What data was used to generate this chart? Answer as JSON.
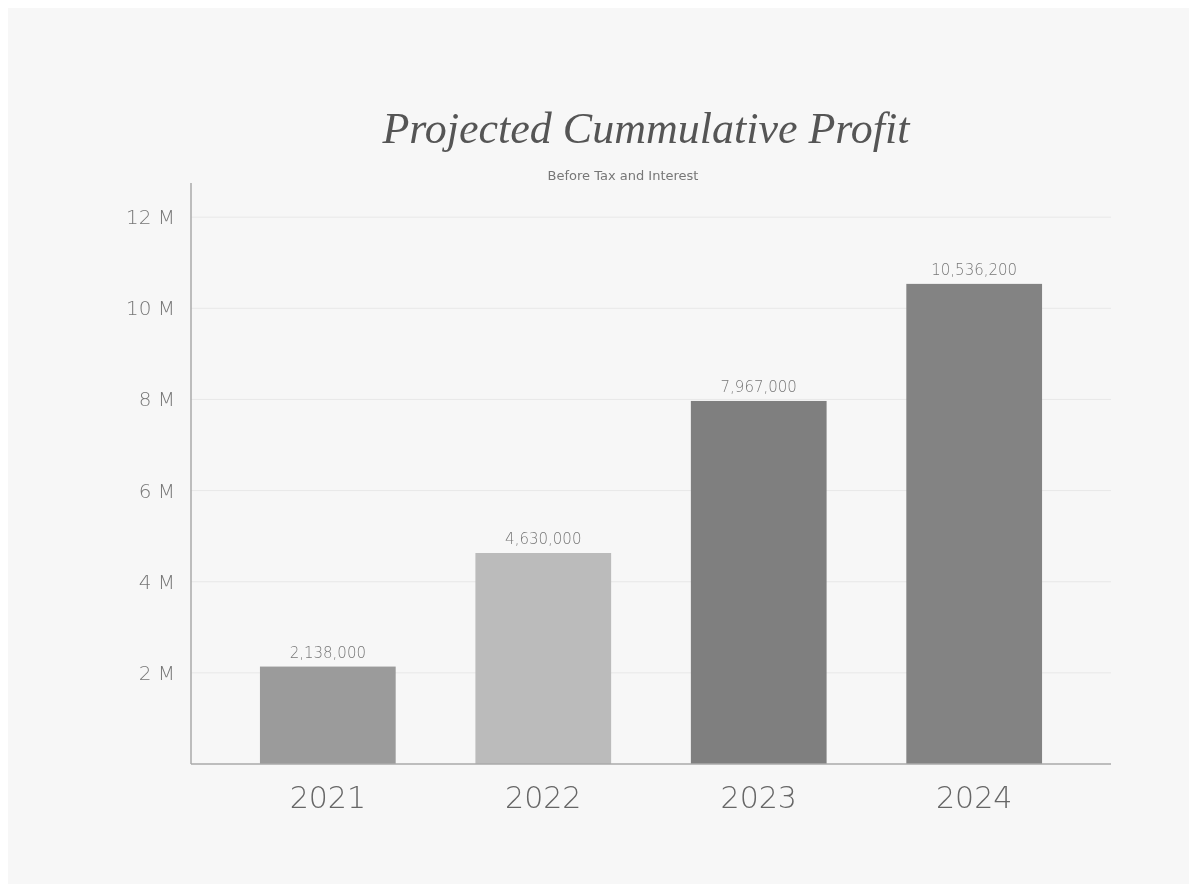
{
  "chart_data": {
    "type": "bar",
    "title": "Projected Cummulative Profit",
    "subtitle": "Before Tax and Interest",
    "categories": [
      "2021",
      "2022",
      "2023",
      "2024"
    ],
    "values": [
      2138000,
      4630000,
      7967000,
      10536200
    ],
    "colors": [
      "#9b9b9b",
      "#bbbbbb",
      "#7f7f7f",
      "#838383"
    ],
    "value_labels": [
      "2,138,000",
      "4,630,000",
      "7,967,000",
      "10,536,200"
    ],
    "ylim": [
      0,
      12750000
    ],
    "yticks": [
      {
        "value": 2000000,
        "label": "2 M"
      },
      {
        "value": 4000000,
        "label": "4 M"
      },
      {
        "value": 6000000,
        "label": "6 M"
      },
      {
        "value": 8000000,
        "label": "8 M"
      },
      {
        "value": 10000000,
        "label": "10 M"
      },
      {
        "value": 12000000,
        "label": "12 M"
      }
    ],
    "grid": "y"
  }
}
